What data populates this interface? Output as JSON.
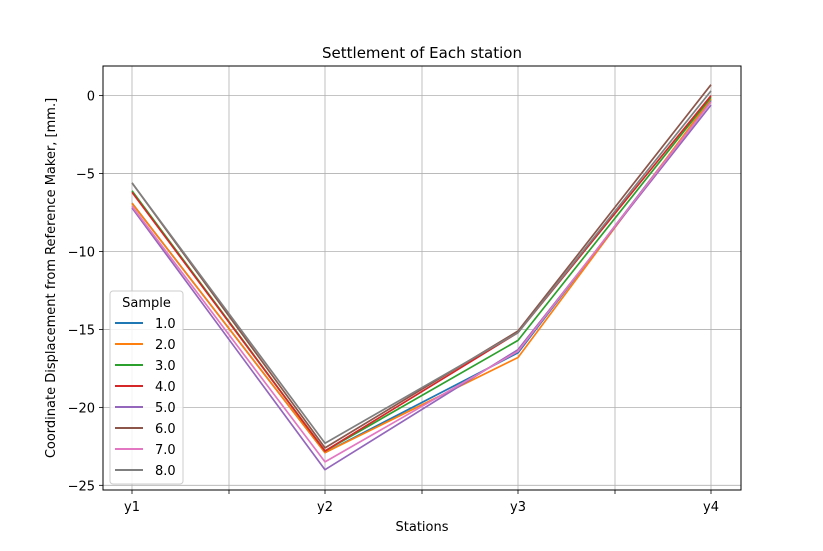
{
  "chart_data": {
    "type": "line",
    "title": "Settlement of Each station",
    "xlabel": "Stations",
    "ylabel": "Coordinate Displacement from Reference Maker, [mm.]",
    "categories": [
      "y1",
      "y2",
      "y3",
      "y4"
    ],
    "ylim": [
      -25.3,
      1.9
    ],
    "yticks": [
      0,
      -5,
      -10,
      -15,
      -20,
      -25
    ],
    "ytick_labels": [
      "0",
      "−5",
      "−10",
      "−15",
      "−20",
      "−25"
    ],
    "grid": true,
    "legend": {
      "title": "Sample",
      "placement": "lower-left"
    },
    "series": [
      {
        "name": "1.0",
        "color": "#1f77b4",
        "values": [
          -6.9,
          -22.9,
          -16.5,
          -0.3
        ]
      },
      {
        "name": "2.0",
        "color": "#ff7f0e",
        "values": [
          -6.9,
          -22.9,
          -16.8,
          -0.2
        ]
      },
      {
        "name": "3.0",
        "color": "#2ca02c",
        "values": [
          -6.1,
          -22.8,
          -15.7,
          -0.1
        ]
      },
      {
        "name": "4.0",
        "color": "#d62728",
        "values": [
          -6.2,
          -22.8,
          -15.2,
          0.0
        ]
      },
      {
        "name": "5.0",
        "color": "#9467bd",
        "values": [
          -7.2,
          -24.0,
          -16.3,
          -0.6
        ]
      },
      {
        "name": "6.0",
        "color": "#8c564b",
        "values": [
          -5.6,
          -22.6,
          -15.1,
          0.7
        ]
      },
      {
        "name": "7.0",
        "color": "#e377c2",
        "values": [
          -7.1,
          -23.5,
          -16.4,
          -0.4
        ]
      },
      {
        "name": "8.0",
        "color": "#7f7f7f",
        "values": [
          -5.6,
          -22.3,
          -15.2,
          0.3
        ]
      }
    ]
  }
}
